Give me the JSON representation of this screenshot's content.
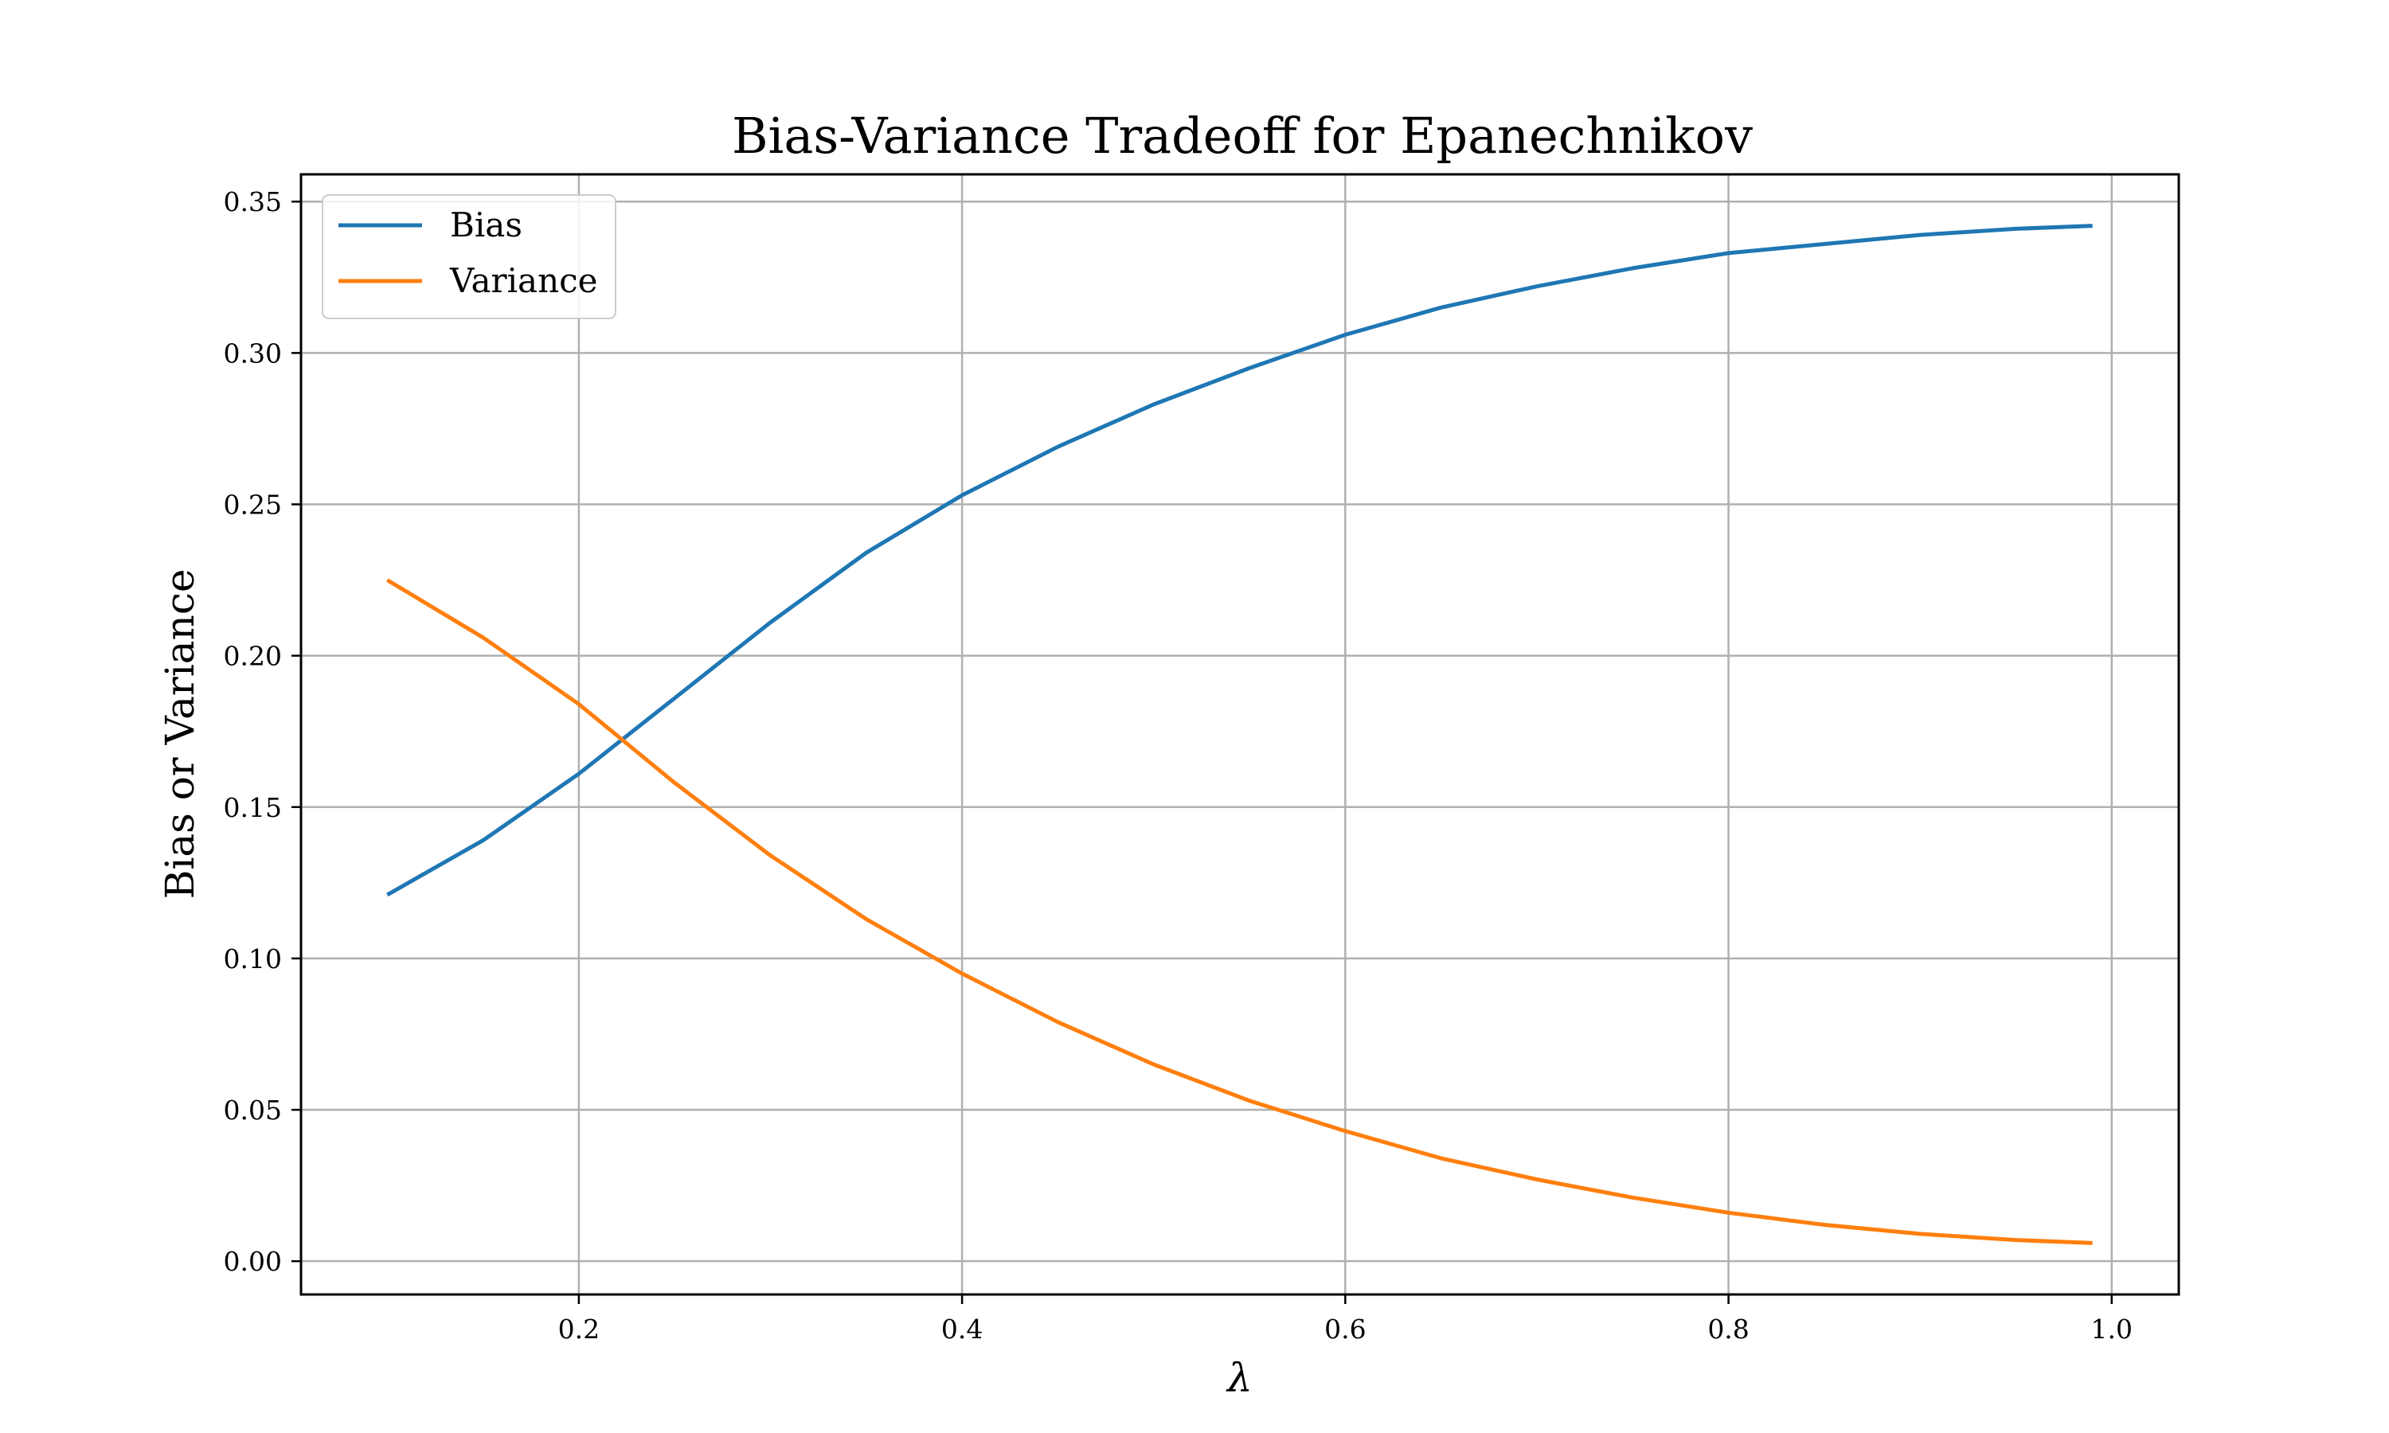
{
  "chart_data": {
    "type": "line",
    "title": "Bias-Variance Tradeoff for Epanechnikov",
    "xlabel": "λ",
    "ylabel": "Bias or Variance",
    "xlim": [
      0.055,
      1.035
    ],
    "ylim": [
      -0.011,
      0.359
    ],
    "xticks": [
      0.2,
      0.4,
      0.6,
      0.8,
      1.0
    ],
    "xtick_labels": [
      "0.2",
      "0.4",
      "0.6",
      "0.8",
      "1.0"
    ],
    "yticks": [
      0.0,
      0.05,
      0.1,
      0.15,
      0.2,
      0.25,
      0.3,
      0.35
    ],
    "ytick_labels": [
      "0.00",
      "0.05",
      "0.10",
      "0.15",
      "0.20",
      "0.25",
      "0.30",
      "0.35"
    ],
    "grid": true,
    "legend_position": "top-left",
    "series": [
      {
        "name": "Bias",
        "color": "#1f77b4",
        "x": [
          0.1,
          0.15,
          0.2,
          0.25,
          0.3,
          0.35,
          0.4,
          0.45,
          0.5,
          0.55,
          0.6,
          0.65,
          0.7,
          0.75,
          0.8,
          0.85,
          0.9,
          0.95,
          0.99
        ],
        "y": [
          0.121,
          0.139,
          0.161,
          0.186,
          0.211,
          0.234,
          0.253,
          0.269,
          0.283,
          0.295,
          0.306,
          0.315,
          0.322,
          0.328,
          0.333,
          0.336,
          0.339,
          0.341,
          0.342
        ]
      },
      {
        "name": "Variance",
        "color": "#ff7f0e",
        "x": [
          0.1,
          0.15,
          0.2,
          0.25,
          0.3,
          0.35,
          0.4,
          0.45,
          0.5,
          0.55,
          0.6,
          0.65,
          0.7,
          0.75,
          0.8,
          0.85,
          0.9,
          0.95,
          0.99
        ],
        "y": [
          0.225,
          0.206,
          0.184,
          0.158,
          0.134,
          0.113,
          0.095,
          0.079,
          0.065,
          0.053,
          0.043,
          0.034,
          0.027,
          0.021,
          0.016,
          0.012,
          0.009,
          0.007,
          0.006
        ]
      }
    ]
  }
}
